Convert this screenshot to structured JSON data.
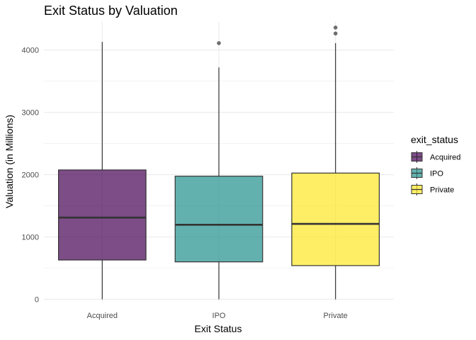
{
  "chart_data": {
    "type": "boxplot",
    "title": "Exit Status by Valuation",
    "xlabel": "Exit Status",
    "ylabel": "Valuation (in Millions)",
    "ylim": [
      -40,
      4450
    ],
    "yticks": [
      0,
      1000,
      2000,
      3000,
      4000
    ],
    "grid": true,
    "legend": {
      "title": "exit_status",
      "position": "right"
    },
    "categories": [
      "Acquired",
      "IPO",
      "Private"
    ],
    "series": [
      {
        "name": "Acquired",
        "color": "#440154",
        "whisker_low": 0,
        "q1": 630,
        "median": 1310,
        "q3": 2075,
        "whisker_high": 4130,
        "outliers": []
      },
      {
        "name": "IPO",
        "color": "#21908C",
        "whisker_low": 0,
        "q1": 600,
        "median": 1195,
        "q3": 1975,
        "whisker_high": 3720,
        "outliers": [
          4110
        ]
      },
      {
        "name": "Private",
        "color": "#FDE725",
        "whisker_low": 0,
        "q1": 540,
        "median": 1210,
        "q3": 2025,
        "whisker_high": 4110,
        "outliers": [
          4265,
          4360
        ]
      }
    ]
  }
}
